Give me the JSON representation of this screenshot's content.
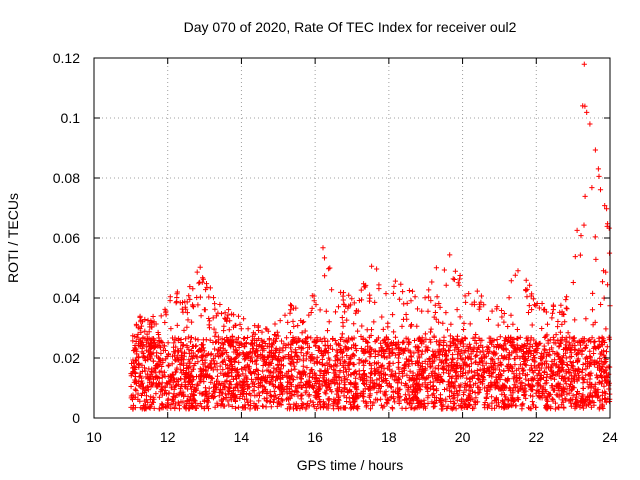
{
  "chart_data": {
    "type": "scatter",
    "title": "Day 070 of 2020, Rate Of TEC Index for receiver oul2",
    "xlabel": "GPS time / hours",
    "ylabel": "ROTI / TECUs",
    "xlim": [
      10,
      24
    ],
    "ylim": [
      0,
      0.12
    ],
    "xticks": [
      10,
      12,
      14,
      16,
      18,
      20,
      22,
      24
    ],
    "yticks": [
      0,
      0.02,
      0.04,
      0.06,
      0.08,
      0.1,
      0.12
    ],
    "xtick_labels": [
      "10",
      "12",
      "14",
      "16",
      "18",
      "20",
      "22",
      "24"
    ],
    "ytick_labels": [
      "0",
      "0.02",
      "0.04",
      "0.06",
      "0.08",
      "0.1",
      "0.12"
    ],
    "grid": true,
    "marker": "+",
    "series": [
      {
        "name": "ROTI",
        "color": "#ff0000",
        "x_range": [
          11.0,
          24.0
        ],
        "envelope_breakpoints": [
          [
            11.0,
            0.028
          ],
          [
            11.3,
            0.036
          ],
          [
            11.8,
            0.034
          ],
          [
            12.2,
            0.044
          ],
          [
            12.5,
            0.041
          ],
          [
            12.9,
            0.053
          ],
          [
            13.3,
            0.04
          ],
          [
            13.8,
            0.036
          ],
          [
            14.2,
            0.032
          ],
          [
            14.8,
            0.03
          ],
          [
            15.3,
            0.038
          ],
          [
            15.8,
            0.036
          ],
          [
            16.2,
            0.058
          ],
          [
            16.6,
            0.044
          ],
          [
            17.1,
            0.04
          ],
          [
            17.6,
            0.053
          ],
          [
            18.0,
            0.044
          ],
          [
            18.4,
            0.049
          ],
          [
            18.8,
            0.04
          ],
          [
            19.3,
            0.052
          ],
          [
            19.7,
            0.058
          ],
          [
            20.1,
            0.046
          ],
          [
            20.6,
            0.04
          ],
          [
            21.1,
            0.038
          ],
          [
            21.5,
            0.052
          ],
          [
            22.1,
            0.04
          ],
          [
            22.6,
            0.038
          ],
          [
            23.0,
            0.044
          ],
          [
            23.3,
            0.12
          ],
          [
            23.6,
            0.1
          ],
          [
            23.8,
            0.08
          ],
          [
            24.0,
            0.062
          ]
        ],
        "sample_count": 3800,
        "approximate": true
      }
    ]
  }
}
